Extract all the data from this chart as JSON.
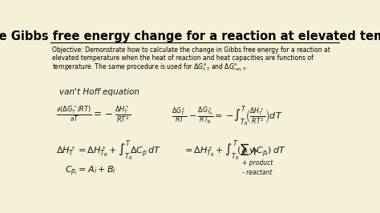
{
  "title": "Calculate Gibbs free energy change for a reaction at elevated temperature",
  "bg_color": "#f5f0d8",
  "title_color": "#000000",
  "title_fontsize": 10.5,
  "objective_line1": "Objective: Demonstrate how to calculate the change in Gibbs free energy for a reaction at",
  "objective_line2": "elevated temperature when the heat of reaction and heat capacities are functions of",
  "objective_line3": "temperature. The same procedure is used for $\\Delta G^o_{f,T}$ and $\\Delta G^o_{rxn,T}$.",
  "vant_hoff": "van't Hoff equation",
  "annotation_product": "+ product",
  "annotation_reactant": "- reactant"
}
